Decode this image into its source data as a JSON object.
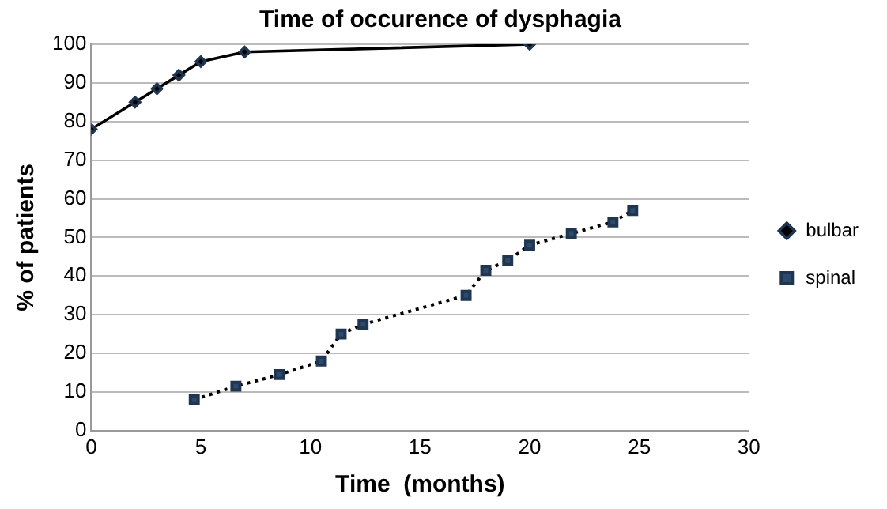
{
  "chart_data": {
    "type": "line",
    "title": "Time of occurence of dysphagia",
    "xlabel": "Time  (months)",
    "ylabel": "% of patients",
    "xlim": [
      0,
      30
    ],
    "xticks": [
      0,
      5,
      10,
      15,
      20,
      25,
      30
    ],
    "ylim": [
      0,
      100
    ],
    "yticks": [
      0,
      10,
      20,
      30,
      40,
      50,
      60,
      70,
      80,
      90,
      100
    ],
    "grid": "y",
    "legend": "right",
    "series": [
      {
        "name": "bulbar",
        "color": "#000000",
        "marker": "diamond",
        "line_style": "solid",
        "x": [
          0,
          2,
          3,
          4,
          5,
          7,
          20
        ],
        "values": [
          78,
          85,
          88.5,
          92,
          95.5,
          98,
          100
        ]
      },
      {
        "name": "spinal",
        "color": "#000000",
        "marker": "square",
        "line_style": "dotted",
        "x": [
          4.7,
          6.6,
          8.6,
          10.5,
          11.4,
          12.4,
          17.1,
          18,
          19,
          20,
          21.9,
          23.8,
          24.7
        ],
        "values": [
          8,
          11.5,
          14.5,
          18,
          25,
          27.5,
          35,
          41.5,
          44,
          48,
          51,
          54,
          57
        ]
      }
    ]
  }
}
